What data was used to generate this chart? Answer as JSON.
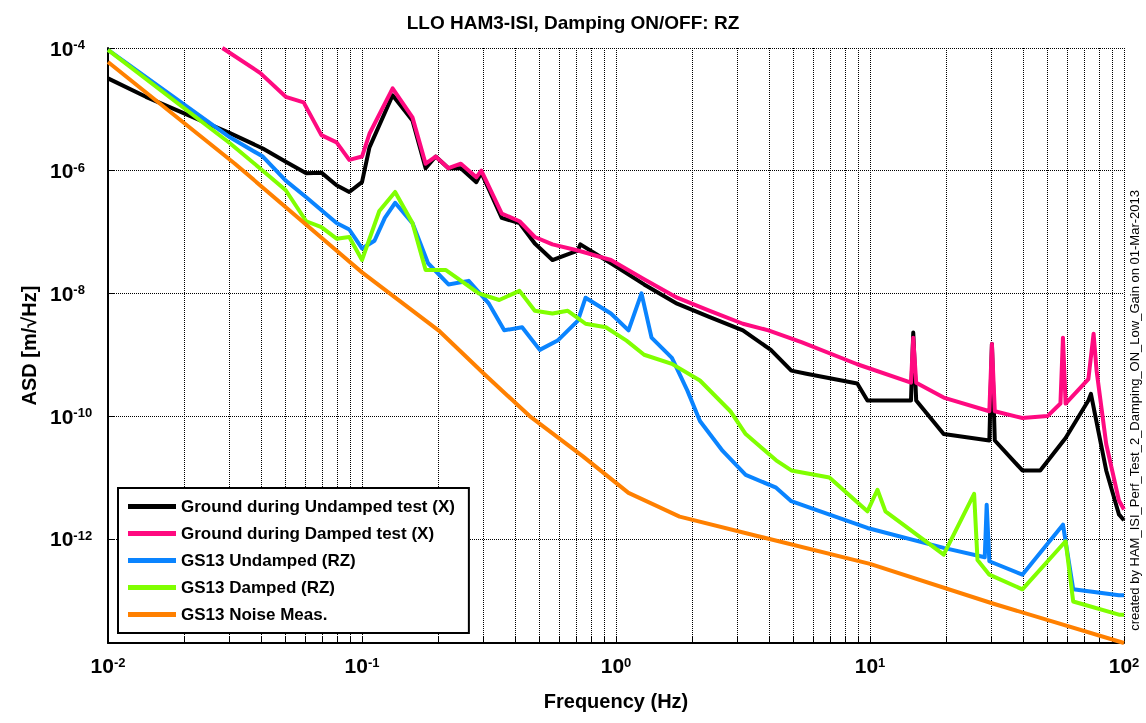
{
  "chart_data": {
    "type": "line",
    "title": "LLO HAM3-ISI, Damping ON/OFF: RZ",
    "xlabel": "Frequency (Hz)",
    "ylabel": "ASD [m/√Hz]",
    "annotations": [
      "created by HAM_ISI_Perf_Test_2_Damping_ON_Low_Gain on 01-Mar-2013"
    ],
    "log": "xy",
    "grid": true,
    "legend": "bottom left",
    "marker": "none",
    "xlim": [
      0.01,
      100
    ],
    "ylim": [
      2e-14,
      0.0001
    ],
    "xticks": [
      {
        "value": 0.01,
        "label": "10$^{-2}$"
      },
      {
        "value": 0.02,
        "label": null
      },
      {
        "value": 0.03,
        "label": null
      },
      {
        "value": 0.04,
        "label": null
      },
      {
        "value": 0.05,
        "label": null
      },
      {
        "value": 0.06,
        "label": null
      },
      {
        "value": 0.07,
        "label": null
      },
      {
        "value": 0.08,
        "label": null
      },
      {
        "value": 0.09,
        "label": null
      },
      {
        "value": 0.1,
        "label": "10$^{-1}$"
      },
      {
        "value": 0.2,
        "label": null
      },
      {
        "value": 0.3,
        "label": null
      },
      {
        "value": 0.4,
        "label": null
      },
      {
        "value": 0.5,
        "label": null
      },
      {
        "value": 0.6,
        "label": null
      },
      {
        "value": 0.7,
        "label": null
      },
      {
        "value": 0.8,
        "label": null
      },
      {
        "value": 0.9,
        "label": null
      },
      {
        "value": 1,
        "label": "10$^{0}$"
      },
      {
        "value": 2,
        "label": null
      },
      {
        "value": 3,
        "label": null
      },
      {
        "value": 4,
        "label": null
      },
      {
        "value": 5,
        "label": null
      },
      {
        "value": 6,
        "label": null
      },
      {
        "value": 7,
        "label": null
      },
      {
        "value": 8,
        "label": null
      },
      {
        "value": 9,
        "label": null
      },
      {
        "value": 10,
        "label": "10$^{1}$"
      },
      {
        "value": 20,
        "label": null
      },
      {
        "value": 30,
        "label": null
      },
      {
        "value": 40,
        "label": null
      },
      {
        "value": 50,
        "label": null
      },
      {
        "value": 60,
        "label": null
      },
      {
        "value": 70,
        "label": null
      },
      {
        "value": 80,
        "label": null
      },
      {
        "value": 90,
        "label": null
      },
      {
        "value": 100,
        "label": "10$^{2}$"
      }
    ],
    "yticks": [
      {
        "value": 1e-12,
        "label": "10$^{-12}$"
      },
      {
        "value": 1e-10,
        "label": "10$^{-10}$"
      },
      {
        "value": 1e-08,
        "label": "10$^{-8}$"
      },
      {
        "value": 1e-06,
        "label": "10$^{-6}$"
      },
      {
        "value": 0.0001,
        "label": "10$^{-4}$"
      }
    ],
    "series": [
      {
        "name": "Ground during Undamped test (X)",
        "color": "#000000",
        "x": [
          0.01,
          0.0141,
          0.0302,
          0.0407,
          0.0501,
          0.0603,
          0.0692,
          0.0794,
          0.0891,
          0.1,
          0.107,
          0.132,
          0.158,
          0.178,
          0.195,
          0.219,
          0.245,
          0.282,
          0.295,
          0.355,
          0.417,
          0.479,
          0.562,
          0.708,
          0.724,
          0.955,
          1.29,
          1.74,
          2.34,
          3.16,
          4.07,
          4.9,
          5.62,
          8.91,
          9.77,
          14.5,
          14.8,
          15.2,
          19.5,
          29.5,
          30.2,
          31,
          39.8,
          46.8,
          58.9,
          72.4,
          74.1,
          85.1,
          95.5,
          100
        ],
        "values": [
          3.2e-05,
          1.6e-05,
          4.1e-06,
          2.3e-06,
          1.4e-06,
          9.1e-07,
          9.3e-07,
          5.8e-07,
          4.5e-07,
          6.5e-07,
          2.4e-06,
          1.7e-05,
          6.6e-06,
          1.1e-06,
          1.7e-06,
          1.1e-06,
          1.1e-06,
          6.5e-07,
          9.3e-07,
          1.7e-07,
          1.4e-07,
          6.5e-08,
          3.5e-08,
          5e-08,
          6.3e-08,
          3.1e-08,
          1.4e-08,
          6.8e-09,
          4.1e-09,
          2.5e-09,
          1.2e-09,
          5.5e-10,
          4.9e-10,
          3.4e-10,
          1.8e-10,
          1.8e-10,
          2.3e-09,
          1.8e-10,
          5.1e-11,
          4e-11,
          1.5e-09,
          4e-11,
          1.3e-11,
          1.3e-11,
          4.4e-11,
          1.8e-10,
          2.3e-10,
          1.3e-11,
          2.5e-12,
          2e-12
        ]
      },
      {
        "name": "Ground during Damped test (X)",
        "color": "#ff0a80",
        "x": [
          0.0282,
          0.0398,
          0.0501,
          0.0589,
          0.0692,
          0.0794,
          0.0891,
          0.1,
          0.107,
          0.132,
          0.158,
          0.178,
          0.195,
          0.219,
          0.245,
          0.282,
          0.295,
          0.355,
          0.417,
          0.479,
          0.562,
          0.708,
          0.955,
          1.29,
          1.74,
          2.34,
          3.16,
          3.98,
          5.37,
          8.91,
          14.5,
          14.8,
          15.2,
          19.5,
          29.5,
          30.2,
          31,
          39.8,
          50,
          56.2,
          57.5,
          58.9,
          72.4,
          75.9,
          78,
          85.1,
          95.5,
          100
        ],
        "values": [
          0.0001,
          3.9e-05,
          1.6e-05,
          1.3e-05,
          3.8e-06,
          2.9e-06,
          1.5e-06,
          1.7e-06,
          4e-06,
          2.2e-05,
          7.4e-06,
          1.3e-06,
          1.7e-06,
          1.1e-06,
          1.3e-06,
          7.8e-07,
          1e-06,
          2e-07,
          1.5e-07,
          8.3e-08,
          6.3e-08,
          5e-08,
          3.5e-08,
          1.7e-08,
          8.5e-09,
          5.2e-09,
          3.2e-09,
          2.5e-09,
          1.6e-09,
          7e-10,
          3.5e-10,
          1.9e-09,
          3.5e-10,
          2e-10,
          1.2e-10,
          1.5e-09,
          1.2e-10,
          9.3e-11,
          1e-10,
          1.6e-10,
          1.9e-09,
          1.6e-10,
          4e-10,
          2.2e-09,
          5.5e-10,
          3.5e-11,
          4.2e-12,
          3e-12
        ]
      },
      {
        "name": "GS13 Undamped (RZ)",
        "color": "#0a84ff",
        "x": [
          0.01,
          0.0302,
          0.0407,
          0.0501,
          0.0603,
          0.0794,
          0.0891,
          0.1,
          0.112,
          0.123,
          0.135,
          0.158,
          0.182,
          0.219,
          0.263,
          0.316,
          0.363,
          0.427,
          0.501,
          0.589,
          0.708,
          0.759,
          0.955,
          1.12,
          1.26,
          1.38,
          1.66,
          1.91,
          2.14,
          2.63,
          3.24,
          4.27,
          4.9,
          9.77,
          19.5,
          28.3,
          28.8,
          29.5,
          39.8,
          57.5,
          63.1,
          95.5,
          100
        ],
        "values": [
          9.3e-05,
          3.5e-06,
          1.7e-06,
          6.9e-07,
          3.7e-07,
          1.4e-07,
          1.1e-07,
          5.4e-08,
          7.2e-08,
          1.7e-07,
          3e-07,
          1.4e-07,
          3.1e-08,
          1.4e-08,
          1.6e-08,
          6.8e-09,
          2.5e-09,
          2.8e-09,
          1.2e-09,
          1.7e-09,
          3.6e-09,
          8.5e-09,
          4.7e-09,
          2.5e-09,
          1e-08,
          1.9e-09,
          8.9e-10,
          2.6e-10,
          8.3e-11,
          2.7e-11,
          1.1e-11,
          6.8e-12,
          4.1e-12,
          1.5e-12,
          7.1e-13,
          5e-13,
          3.6e-12,
          4.3e-13,
          2.6e-13,
          1.7e-12,
          1.5e-13,
          1.2e-13,
          1.2e-13
        ]
      },
      {
        "name": "GS13 Damped (RZ)",
        "color": "#80ff00",
        "x": [
          0.01,
          0.0302,
          0.0407,
          0.0501,
          0.0603,
          0.0692,
          0.0794,
          0.0891,
          0.1,
          0.117,
          0.135,
          0.158,
          0.178,
          0.214,
          0.257,
          0.288,
          0.347,
          0.417,
          0.479,
          0.562,
          0.646,
          0.759,
          0.912,
          1.1,
          1.29,
          1.66,
          2.14,
          2.82,
          3.24,
          4.27,
          4.9,
          6.92,
          9.77,
          10.7,
          11.5,
          19.5,
          25.7,
          26.5,
          29.5,
          39.8,
          58.9,
          63.1,
          95.5,
          100
        ],
        "values": [
          9.3e-05,
          2.8e-06,
          1e-06,
          4.8e-07,
          1.5e-07,
          1.2e-07,
          7.8e-08,
          8.3e-08,
          3.5e-08,
          2.2e-07,
          4.5e-07,
          1.4e-07,
          2.4e-08,
          2.4e-08,
          1.4e-08,
          1e-08,
          7.8e-09,
          1.1e-08,
          5.2e-09,
          4.7e-09,
          5.2e-09,
          3.2e-09,
          2.8e-09,
          1.7e-09,
          1e-09,
          7.1e-10,
          3.8e-10,
          1.2e-10,
          5.1e-11,
          1.9e-11,
          1.3e-11,
          1e-11,
          2.8e-12,
          6.3e-12,
          2.8e-12,
          5.5e-13,
          5.4e-12,
          4.5e-13,
          2.6e-13,
          1.5e-13,
          9.1e-13,
          9.5e-14,
          5.8e-14,
          5.8e-14
        ]
      },
      {
        "name": "GS13 Noise Meas.",
        "color": "#ff8000",
        "x": [
          0.01,
          0.0316,
          0.1,
          0.2,
          0.302,
          0.457,
          0.741,
          1.12,
          1.78,
          3.63,
          10,
          30.2,
          100
        ],
        "values": [
          5.9e-05,
          1.3e-06,
          2.2e-08,
          2.5e-09,
          4.9e-10,
          1e-10,
          2.2e-11,
          5.6e-12,
          2.3e-12,
          1.1e-12,
          3.9e-13,
          8.9e-14,
          2e-14
        ]
      }
    ]
  }
}
